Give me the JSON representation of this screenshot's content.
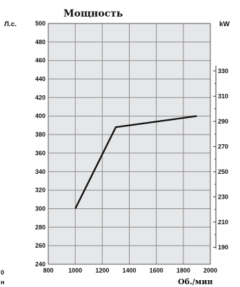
{
  "edge_fragments": [
    "0",
    "н"
  ],
  "chart_data": {
    "type": "line",
    "title": "Мощность",
    "xlabel": "Об./мин",
    "ylabel_left": "Л.с.",
    "ylabel_right": "kW",
    "xlim": [
      800,
      2000
    ],
    "ylim": [
      240,
      500
    ],
    "x_ticks": [
      "800",
      "1000",
      "1200",
      "1400",
      "1600",
      "1800",
      "2000"
    ],
    "y_ticks_left": [
      "240",
      "260",
      "280",
      "300",
      "320",
      "340",
      "360",
      "380",
      "400",
      "420",
      "440",
      "460",
      "480",
      "500"
    ],
    "y_ticks_right": [
      "190",
      "210",
      "230",
      "250",
      "270",
      "290",
      "310",
      "330"
    ],
    "y_ticks_right_values": [
      190,
      210,
      230,
      250,
      270,
      290,
      310,
      330
    ],
    "kw_per_hp": 0.7355,
    "grid": true,
    "background_color": "#e6e7e9",
    "grid_color": "#8a8a8a",
    "line_color": "#111111",
    "series": [
      {
        "x": [
          1000,
          1300,
          1900
        ],
        "y": [
          300,
          388,
          400
        ]
      }
    ]
  }
}
